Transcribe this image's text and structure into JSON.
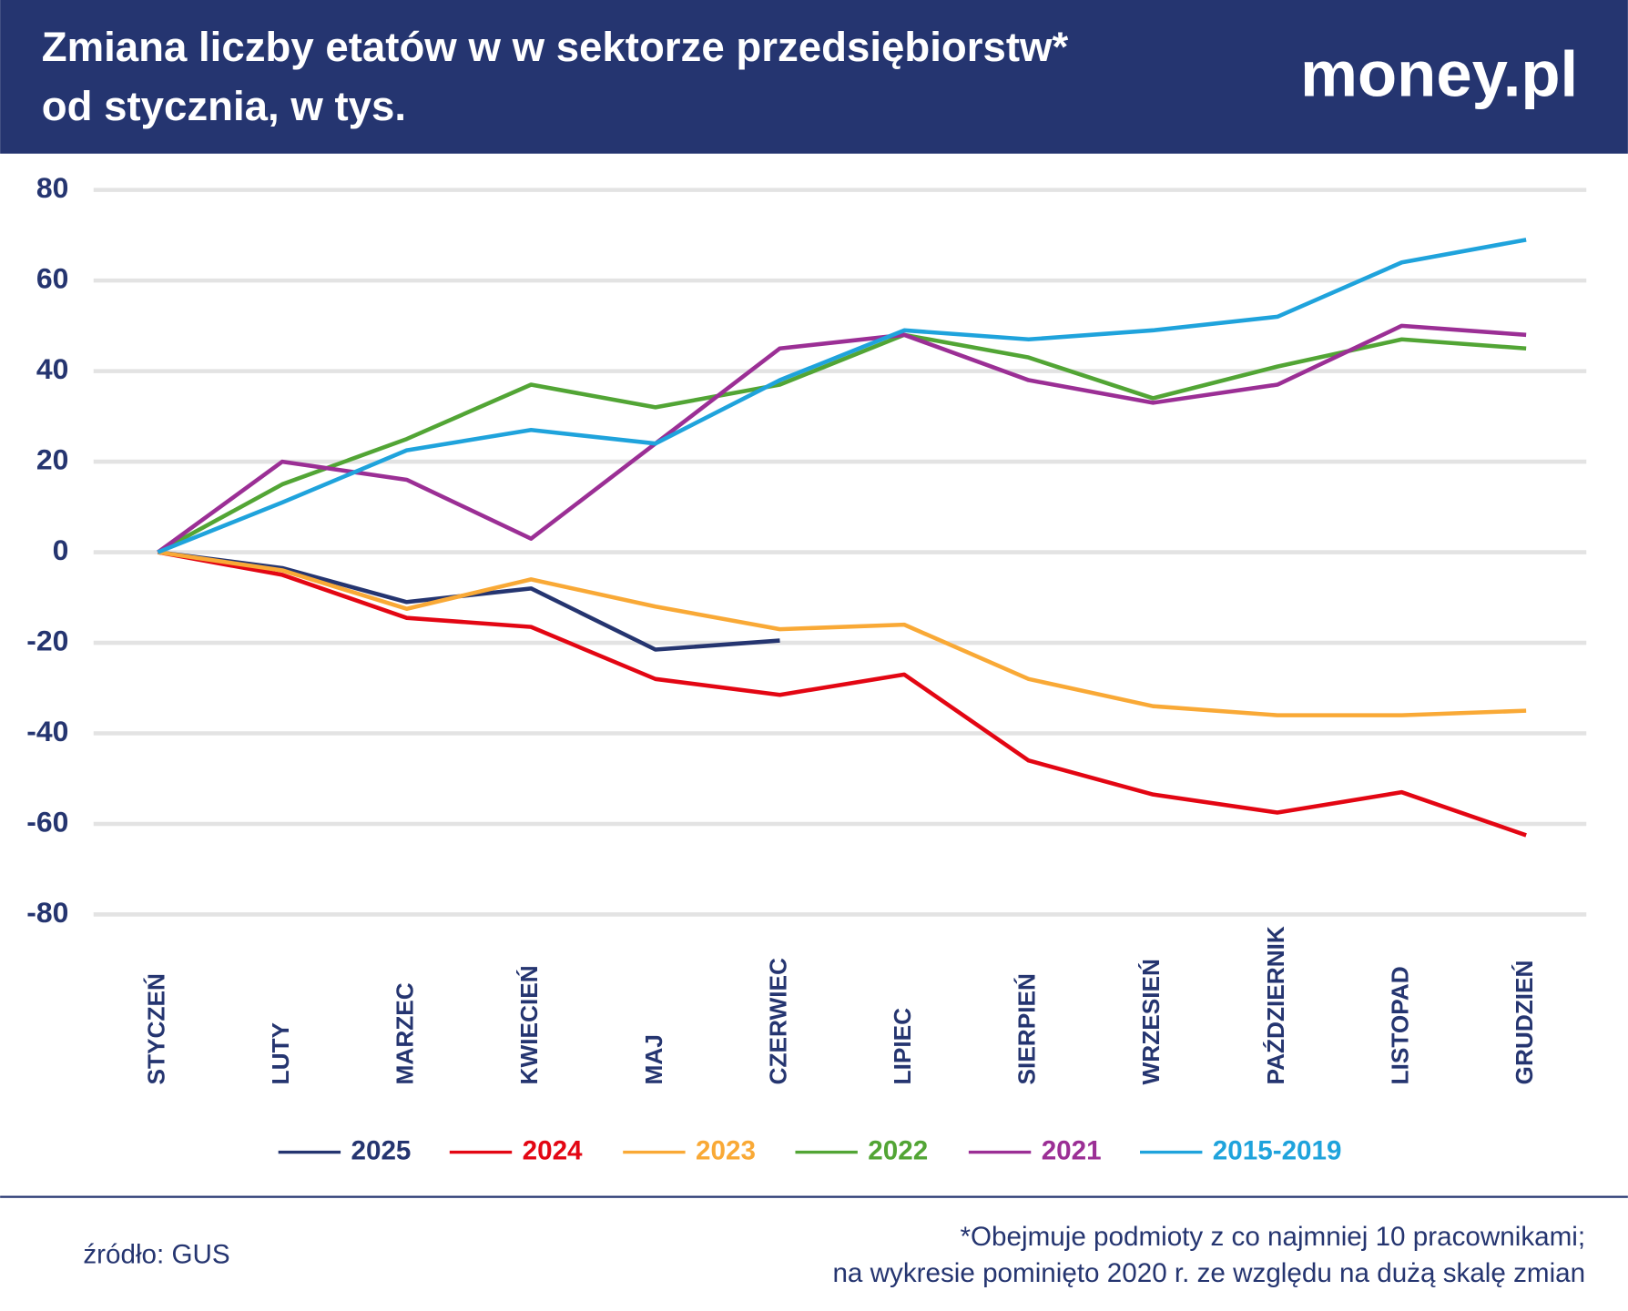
{
  "chart_data": {
    "type": "line",
    "title": [
      "Zmiana liczby etatów w w sektorze przedsiębiorstw*",
      "od stycznia, w tys."
    ],
    "logo": "money.pl",
    "categories": [
      "STYCZEŃ",
      "LUTY",
      "MARZEC",
      "KWIECIEŃ",
      "MAJ",
      "CZERWIEC",
      "LIPIEC",
      "SIERPIEŃ",
      "WRZESIEŃ",
      "PAŹDZIERNIK",
      "LISTOPAD",
      "GRUDZIEŃ"
    ],
    "series": [
      {
        "name": "2025",
        "color": "#253570",
        "values": [
          0,
          -3.5,
          -11,
          -8,
          -21.5,
          -19.5,
          null,
          null,
          null,
          null,
          null,
          null
        ]
      },
      {
        "name": "2024",
        "color": "#e30613",
        "values": [
          0,
          -5,
          -14.5,
          -16.5,
          -28,
          -31.5,
          -27,
          -46,
          -53.5,
          -57.5,
          -53,
          -62.5
        ]
      },
      {
        "name": "2023",
        "color": "#f9a936",
        "values": [
          0,
          -4,
          -12.5,
          -6,
          -12,
          -17,
          -16,
          -28,
          -34,
          -36,
          -36,
          -35
        ]
      },
      {
        "name": "2022",
        "color": "#52a535",
        "values": [
          0,
          15,
          25,
          37,
          32,
          37,
          48,
          43,
          34,
          41,
          47,
          45
        ]
      },
      {
        "name": "2021",
        "color": "#9b2f95",
        "values": [
          0,
          20,
          16,
          3,
          24,
          45,
          48,
          38,
          33,
          37,
          50,
          48
        ]
      },
      {
        "name": "2015-2019",
        "color": "#1fa3dc",
        "values": [
          0,
          11,
          22.5,
          27,
          24,
          38,
          49,
          47,
          49,
          52,
          64,
          69
        ]
      }
    ],
    "ylim": [
      -80,
      80
    ],
    "yticks": [
      -80,
      -60,
      -40,
      -20,
      0,
      20,
      40,
      60,
      80
    ],
    "grid": true,
    "source": "źródło: GUS",
    "note": [
      "*Obejmuje podmioty z co najmniej 10 pracownikami;",
      "na wykresie pominięto 2020 r. ze względu na dużą skalę zmian"
    ]
  }
}
